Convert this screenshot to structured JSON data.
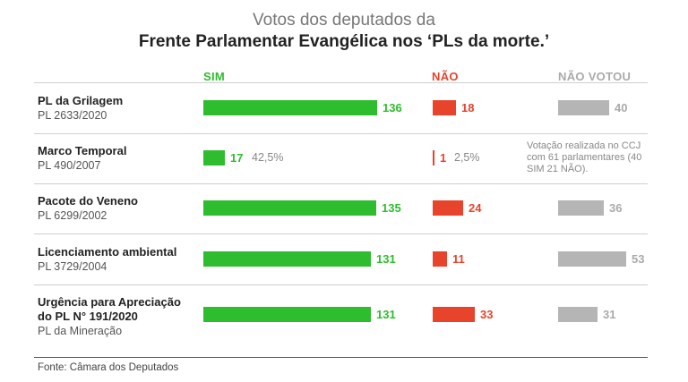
{
  "chart_data": {
    "type": "bar",
    "title": "Votos dos deputados da",
    "subtitle": "Frente Parlamentar Evangélica nos ‘PLs da morte.’",
    "columns": {
      "sim": "SIM",
      "nao": "NÃO",
      "nao_votou": "NÃO VOTOU"
    },
    "colors": {
      "sim": "#2ebd2e",
      "nao": "#e8432b",
      "nao_votou": "#b5b5b5"
    },
    "rows": [
      {
        "name": "PL da Grilagem",
        "sub": [
          "PL 2633/2020"
        ],
        "sim": 136,
        "nao": 18,
        "nao_votou": 40,
        "sim_pct": "",
        "nao_pct": ""
      },
      {
        "name": "Marco Temporal",
        "sub": [
          "PL 490/2007"
        ],
        "sim": 17,
        "nao": 1,
        "nao_votou": null,
        "sim_pct": "42,5%",
        "nao_pct": "2,5%"
      },
      {
        "name": "Pacote do Veneno",
        "sub": [
          "PL 6299/2002"
        ],
        "sim": 135,
        "nao": 24,
        "nao_votou": 36,
        "sim_pct": "",
        "nao_pct": ""
      },
      {
        "name": "Licenciamento ambiental",
        "sub": [
          "PL 3729/2004"
        ],
        "sim": 131,
        "nao": 11,
        "nao_votou": 53,
        "sim_pct": "",
        "nao_pct": ""
      },
      {
        "name": "Urgência para Apreciação",
        "sub": [
          "do PL N° 191/2020",
          "PL da Mineração"
        ],
        "sim": 131,
        "nao": 33,
        "nao_votou": 31,
        "sim_pct": "",
        "nao_pct": ""
      }
    ],
    "note": "Votação realizada no CCJ com 61 parlamentares (40 SIM  21 NÃO).",
    "source": "Fonte: Câmara dos Deputados"
  }
}
